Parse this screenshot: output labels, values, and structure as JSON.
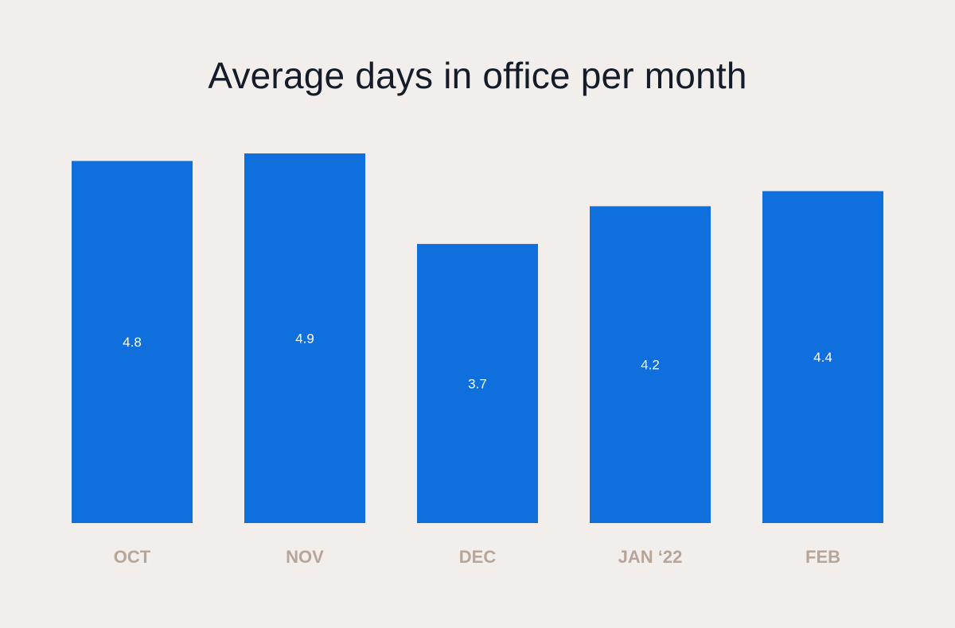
{
  "colors": {
    "background": "#f2eeeb",
    "bar": "#0f6fdc",
    "title": "#141c29",
    "category_label": "#b8a59a",
    "value_label": "#ffffff"
  },
  "chart_data": {
    "type": "bar",
    "title": "Average days in office per month",
    "xlabel": "",
    "ylabel": "",
    "categories": [
      "OCT",
      "NOV",
      "DEC",
      "JAN ‘22",
      "FEB"
    ],
    "values": [
      4.8,
      4.9,
      3.7,
      4.2,
      4.4
    ],
    "data_labels": [
      "4.8",
      "4.9",
      "3.7",
      "4.2",
      "4.4"
    ],
    "grid": false,
    "legend": "none"
  }
}
